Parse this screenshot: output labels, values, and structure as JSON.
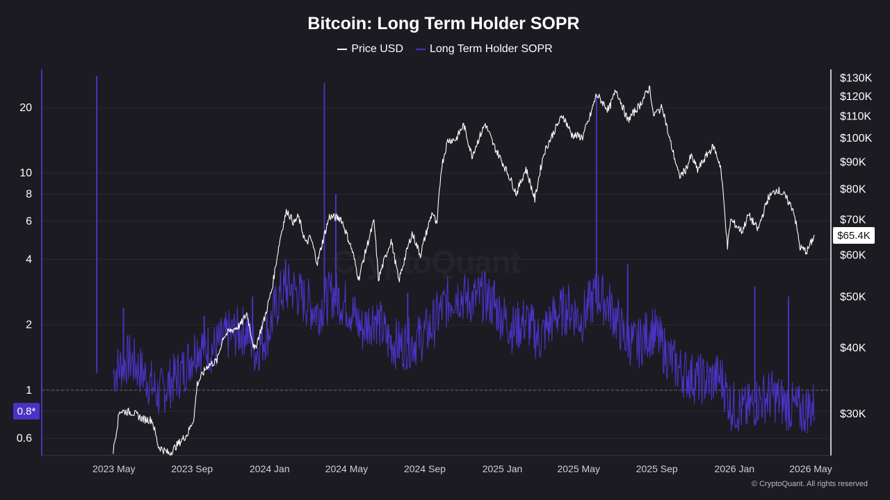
{
  "title": "Bitcoin: Long Term Holder SOPR",
  "legend": [
    {
      "name": "Price USD",
      "color": "#ffffff"
    },
    {
      "name": "Long Term Holder SOPR",
      "color": "#4b32c3"
    }
  ],
  "watermark": "CryptoQuant",
  "credit": "© CryptoQuant. All rights reserved",
  "chart_data": {
    "type": "line",
    "title": "Bitcoin: Long Term Holder SOPR",
    "x_ticks": [
      "2023 May",
      "2023 Sep",
      "2024 Jan",
      "2024 May",
      "2024 Sep",
      "2025 Jan",
      "2025 May",
      "2025 Sep",
      "2026 Jan",
      "2026 May"
    ],
    "x_range": [
      "2023-03-01",
      "2026-07-10"
    ],
    "left_axis": {
      "scale": "log",
      "range": [
        0.5,
        30
      ],
      "ticks": [
        "0.6",
        "0.8",
        "1",
        "2",
        "4",
        "6",
        "8",
        "10",
        "20"
      ],
      "reference_line": 1,
      "marker_label": "0.8*"
    },
    "right_axis": {
      "scale": "log",
      "range": [
        25000,
        135000
      ],
      "ticks": [
        "$30K",
        "$40K",
        "$50K",
        "$60K",
        "$70K",
        "$80K",
        "$90K",
        "$100K",
        "$110K",
        "$120K",
        "$130K"
      ],
      "current_label": "$65.4K"
    },
    "series": [
      {
        "name": "Price USD",
        "axis": "right",
        "color": "#ffffff",
        "points": [
          [
            "2023-06-15",
            25500
          ],
          [
            "2023-06-25",
            30400
          ],
          [
            "2023-07-15",
            30200
          ],
          [
            "2023-08-01",
            29300
          ],
          [
            "2023-08-15",
            29200
          ],
          [
            "2023-08-25",
            26000
          ],
          [
            "2023-09-11",
            25200
          ],
          [
            "2023-09-25",
            26300
          ],
          [
            "2023-10-10",
            27500
          ],
          [
            "2023-10-20",
            29500
          ],
          [
            "2023-10-25",
            34200
          ],
          [
            "2023-11-10",
            37000
          ],
          [
            "2023-11-25",
            37800
          ],
          [
            "2023-12-05",
            42000
          ],
          [
            "2023-12-15",
            43000
          ],
          [
            "2024-01-01",
            44200
          ],
          [
            "2024-01-11",
            46500
          ],
          [
            "2024-01-23",
            39500
          ],
          [
            "2024-02-08",
            45500
          ],
          [
            "2024-02-20",
            52000
          ],
          [
            "2024-03-05",
            66000
          ],
          [
            "2024-03-14",
            73000
          ],
          [
            "2024-03-25",
            69000
          ],
          [
            "2024-04-01",
            71000
          ],
          [
            "2024-04-13",
            63000
          ],
          [
            "2024-04-20",
            64900
          ],
          [
            "2024-05-01",
            58000
          ],
          [
            "2024-05-20",
            71000
          ],
          [
            "2024-06-07",
            70500
          ],
          [
            "2024-06-25",
            61000
          ],
          [
            "2024-07-05",
            54000
          ],
          [
            "2024-07-29",
            69500
          ],
          [
            "2024-08-05",
            54000
          ],
          [
            "2024-08-25",
            64000
          ],
          [
            "2024-09-06",
            53500
          ],
          [
            "2024-09-27",
            66000
          ],
          [
            "2024-10-10",
            60000
          ],
          [
            "2024-10-29",
            72500
          ],
          [
            "2024-11-05",
            68000
          ],
          [
            "2024-11-12",
            88000
          ],
          [
            "2024-11-22",
            99000
          ],
          [
            "2024-12-05",
            99500
          ],
          [
            "2024-12-17",
            106000
          ],
          [
            "2024-12-30",
            92500
          ],
          [
            "2025-01-20",
            106500
          ],
          [
            "2025-02-02",
            97000
          ],
          [
            "2025-02-27",
            84500
          ],
          [
            "2025-03-10",
            78500
          ],
          [
            "2025-03-25",
            87500
          ],
          [
            "2025-04-08",
            76500
          ],
          [
            "2025-04-22",
            93500
          ],
          [
            "2025-05-10",
            104000
          ],
          [
            "2025-05-22",
            110500
          ],
          [
            "2025-06-05",
            101500
          ],
          [
            "2025-06-22",
            100500
          ],
          [
            "2025-07-03",
            109000
          ],
          [
            "2025-07-14",
            121000
          ],
          [
            "2025-08-02",
            113000
          ],
          [
            "2025-08-14",
            123500
          ],
          [
            "2025-09-01",
            108000
          ],
          [
            "2025-09-20",
            115500
          ],
          [
            "2025-10-06",
            125000
          ],
          [
            "2025-10-11",
            110500
          ],
          [
            "2025-10-26",
            114500
          ],
          [
            "2025-11-04",
            101500
          ],
          [
            "2025-11-21",
            84500
          ],
          [
            "2025-12-01",
            87000
          ],
          [
            "2025-12-10",
            92500
          ],
          [
            "2025-12-20",
            87000
          ],
          [
            "2026-01-05",
            93500
          ],
          [
            "2026-01-14",
            96500
          ],
          [
            "2026-01-25",
            88500
          ],
          [
            "2026-02-05",
            62000
          ],
          [
            "2026-02-10",
            70000
          ],
          [
            "2026-02-28",
            66500
          ],
          [
            "2026-03-10",
            71500
          ],
          [
            "2026-03-25",
            67000
          ],
          [
            "2026-04-10",
            77000
          ],
          [
            "2026-04-24",
            80000
          ],
          [
            "2026-05-05",
            78000
          ],
          [
            "2026-05-20",
            73000
          ],
          [
            "2026-05-30",
            62000
          ],
          [
            "2026-06-10",
            61000
          ],
          [
            "2026-06-22",
            65400
          ]
        ]
      },
      {
        "name": "Long Term Holder SOPR",
        "axis": "left",
        "color": "#4b32c3",
        "points": [
          [
            "2023-06-15",
            1.2
          ],
          [
            "2023-07-10",
            1.4
          ],
          [
            "2023-08-05",
            1.15
          ],
          [
            "2023-08-25",
            0.95
          ],
          [
            "2023-09-15",
            1.1
          ],
          [
            "2023-10-05",
            1.25
          ],
          [
            "2023-10-25",
            1.6
          ],
          [
            "2023-11-20",
            1.55
          ],
          [
            "2023-12-15",
            1.8
          ],
          [
            "2024-01-10",
            1.9
          ],
          [
            "2024-01-25",
            1.5
          ],
          [
            "2024-02-15",
            1.9
          ],
          [
            "2024-03-05",
            2.8
          ],
          [
            "2024-03-20",
            3.0
          ],
          [
            "2024-04-10",
            2.6
          ],
          [
            "2024-05-01",
            2.3
          ],
          [
            "2024-05-25",
            2.8
          ],
          [
            "2024-06-20",
            2.4
          ],
          [
            "2024-07-10",
            1.9
          ],
          [
            "2024-07-30",
            2.2
          ],
          [
            "2024-08-20",
            1.7
          ],
          [
            "2024-09-10",
            1.6
          ],
          [
            "2024-10-05",
            1.7
          ],
          [
            "2024-10-25",
            1.9
          ],
          [
            "2024-11-15",
            2.4
          ],
          [
            "2024-12-05",
            2.8
          ],
          [
            "2024-12-25",
            2.6
          ],
          [
            "2025-01-20",
            2.7
          ],
          [
            "2025-02-10",
            2.3
          ],
          [
            "2025-03-05",
            1.9
          ],
          [
            "2025-03-25",
            2.1
          ],
          [
            "2025-04-15",
            1.7
          ],
          [
            "2025-05-10",
            2.2
          ],
          [
            "2025-06-01",
            2.4
          ],
          [
            "2025-06-20",
            2.1
          ],
          [
            "2025-07-15",
            2.8
          ],
          [
            "2025-08-05",
            2.4
          ],
          [
            "2025-08-25",
            1.8
          ],
          [
            "2025-09-15",
            1.6
          ],
          [
            "2025-10-10",
            1.9
          ],
          [
            "2025-10-30",
            1.5
          ],
          [
            "2025-11-20",
            1.25
          ],
          [
            "2025-12-10",
            1.15
          ],
          [
            "2026-01-05",
            1.1
          ],
          [
            "2026-01-25",
            1.15
          ],
          [
            "2026-02-10",
            0.85
          ],
          [
            "2026-03-05",
            0.8
          ],
          [
            "2026-03-25",
            0.9
          ],
          [
            "2026-04-15",
            0.95
          ],
          [
            "2026-05-10",
            0.85
          ],
          [
            "2026-06-01",
            0.8
          ],
          [
            "2026-06-22",
            0.85
          ]
        ],
        "spikes": [
          [
            "2023-05-20",
            28
          ],
          [
            "2023-07-01",
            2.4
          ],
          [
            "2023-11-05",
            2.2
          ],
          [
            "2024-01-20",
            2.7
          ],
          [
            "2024-03-12",
            4.0
          ],
          [
            "2024-05-12",
            26
          ],
          [
            "2024-05-30",
            8.0
          ],
          [
            "2024-09-20",
            2.8
          ],
          [
            "2025-02-03",
            3.2
          ],
          [
            "2025-07-14",
            23
          ],
          [
            "2025-09-01",
            3.8
          ],
          [
            "2026-03-20",
            3.0
          ],
          [
            "2026-05-12",
            2.7
          ]
        ]
      }
    ],
    "grid": true,
    "legend_position": "top-center"
  }
}
